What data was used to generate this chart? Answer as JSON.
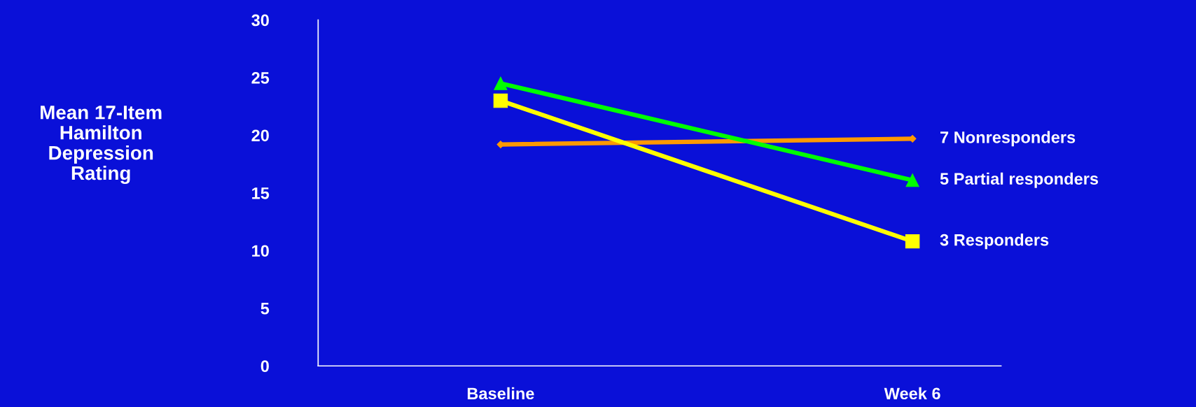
{
  "chart_data": {
    "type": "line",
    "ylabel": "Mean 17-Item\nHamilton\nDepression\nRating",
    "categories": [
      "Baseline",
      "Week 6"
    ],
    "series": [
      {
        "name": "7 Nonresponders",
        "color": "#ff9900",
        "marker": "diamond",
        "values": [
          19.2,
          19.7
        ]
      },
      {
        "name": "5 Partial responders",
        "color": "#00ff00",
        "marker": "triangle",
        "values": [
          24.5,
          16.1
        ]
      },
      {
        "name": "3 Responders",
        "color": "#ffff00",
        "marker": "square",
        "values": [
          23.0,
          10.8
        ]
      }
    ],
    "ylim": [
      0,
      30
    ],
    "yticks": [
      0,
      5,
      10,
      15,
      20,
      25,
      30
    ],
    "grid": false
  }
}
